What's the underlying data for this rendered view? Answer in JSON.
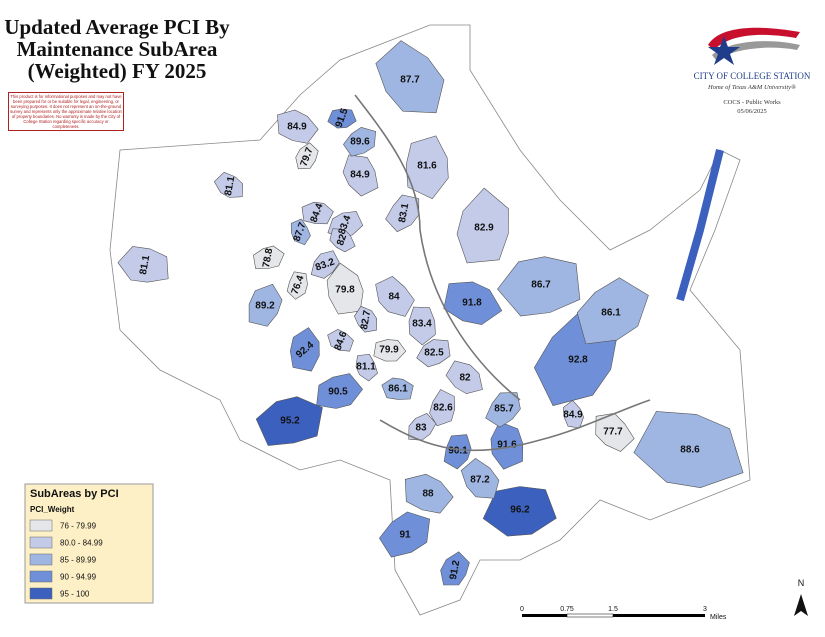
{
  "header": {
    "title_lines": [
      "Updated Average PCI By",
      "Maintenance SubArea",
      "(Weighted) FY 2025"
    ],
    "disclaimer": "This product is for informational purposes and may not have been prepared for or be suitable for legal, engineering, or surveying purposes. It does not represent an on-the-ground survey and represents only the approximate relative location of property boundaries. No warranty is made by the City of College Station regarding specific accuracy or completeness."
  },
  "logo": {
    "name": "CITY OF COLLEGE STATION",
    "tagline": "Home of Texas A&M University®",
    "department": "COCS - Public Works",
    "date": "05/06/2025"
  },
  "legend": {
    "title": "SubAreas by PCI",
    "field": "PCI_Weight",
    "classes": [
      {
        "label": "76 - 79.99",
        "color": "#e4e6ea"
      },
      {
        "label": "80.0 - 84.99",
        "color": "#c3cbe9"
      },
      {
        "label": "85 - 89.99",
        "color": "#9fb6e2"
      },
      {
        "label": "90 - 94.99",
        "color": "#6f90d8"
      },
      {
        "label": "95 - 100",
        "color": "#3c60bd"
      }
    ]
  },
  "areas": [
    87.7,
    84.9,
    91.5,
    89.6,
    79.7,
    81.6,
    84.9,
    81.1,
    84.4,
    83.4,
    83.1,
    82.9,
    87.7,
    82,
    81.1,
    78.8,
    83.2,
    76.4,
    79.8,
    84,
    91.8,
    86.7,
    86.1,
    89.2,
    83.4,
    82.7,
    84.6,
    79.9,
    82.5,
    92.8,
    92.4,
    81.1,
    82,
    86.1,
    90.5,
    85.7,
    82.6,
    84.9,
    77.7,
    88.6,
    95.2,
    83,
    90.1,
    91.6,
    87.2,
    88,
    96.2,
    91,
    91.2
  ],
  "scale": {
    "ticks": [
      "0",
      "0.75",
      "1.5",
      "3"
    ],
    "unit": "Miles"
  },
  "north": "N"
}
